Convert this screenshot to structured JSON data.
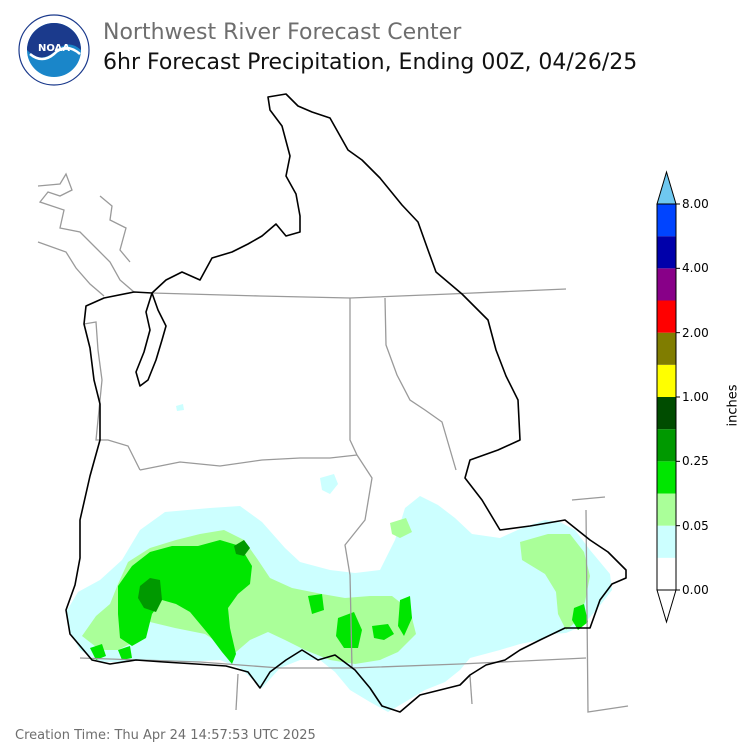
{
  "header": {
    "org_title": "Northwest River Forecast Center",
    "product_title": "6hr Forecast Precipitation, Ending 00Z, 04/26/25"
  },
  "logo": {
    "text": "NOAA",
    "ring_text": "NATIONAL OCEANIC AND ATMOSPHERIC ADMINISTRATION · U.S. DEPARTMENT OF COMMERCE",
    "color_navy": "#1b3a8c",
    "color_blue": "#1a86c9"
  },
  "legend": {
    "unit": "inches",
    "tick_labels": [
      "0.00",
      "0.05",
      "0.25",
      "1.00",
      "2.00",
      "4.00",
      "8.00"
    ],
    "tick_positions": [
      0,
      2,
      4,
      6,
      8,
      10,
      12
    ],
    "bins": [
      {
        "color": "#ffffff"
      },
      {
        "color": "#ccffff"
      },
      {
        "color": "#aaff99"
      },
      {
        "color": "#00e600"
      },
      {
        "color": "#009900"
      },
      {
        "color": "#004c00"
      },
      {
        "color": "#ffff00"
      },
      {
        "color": "#807d00"
      },
      {
        "color": "#ff0000"
      },
      {
        "color": "#880088"
      },
      {
        "color": "#0000aa"
      },
      {
        "color": "#0044ff"
      }
    ],
    "over_color": "#6fc8f0",
    "under_color": "#ffffff"
  },
  "footer": {
    "creation_time": "Creation Time: Thu Apr 24 14:57:53 UTC 2025"
  }
}
